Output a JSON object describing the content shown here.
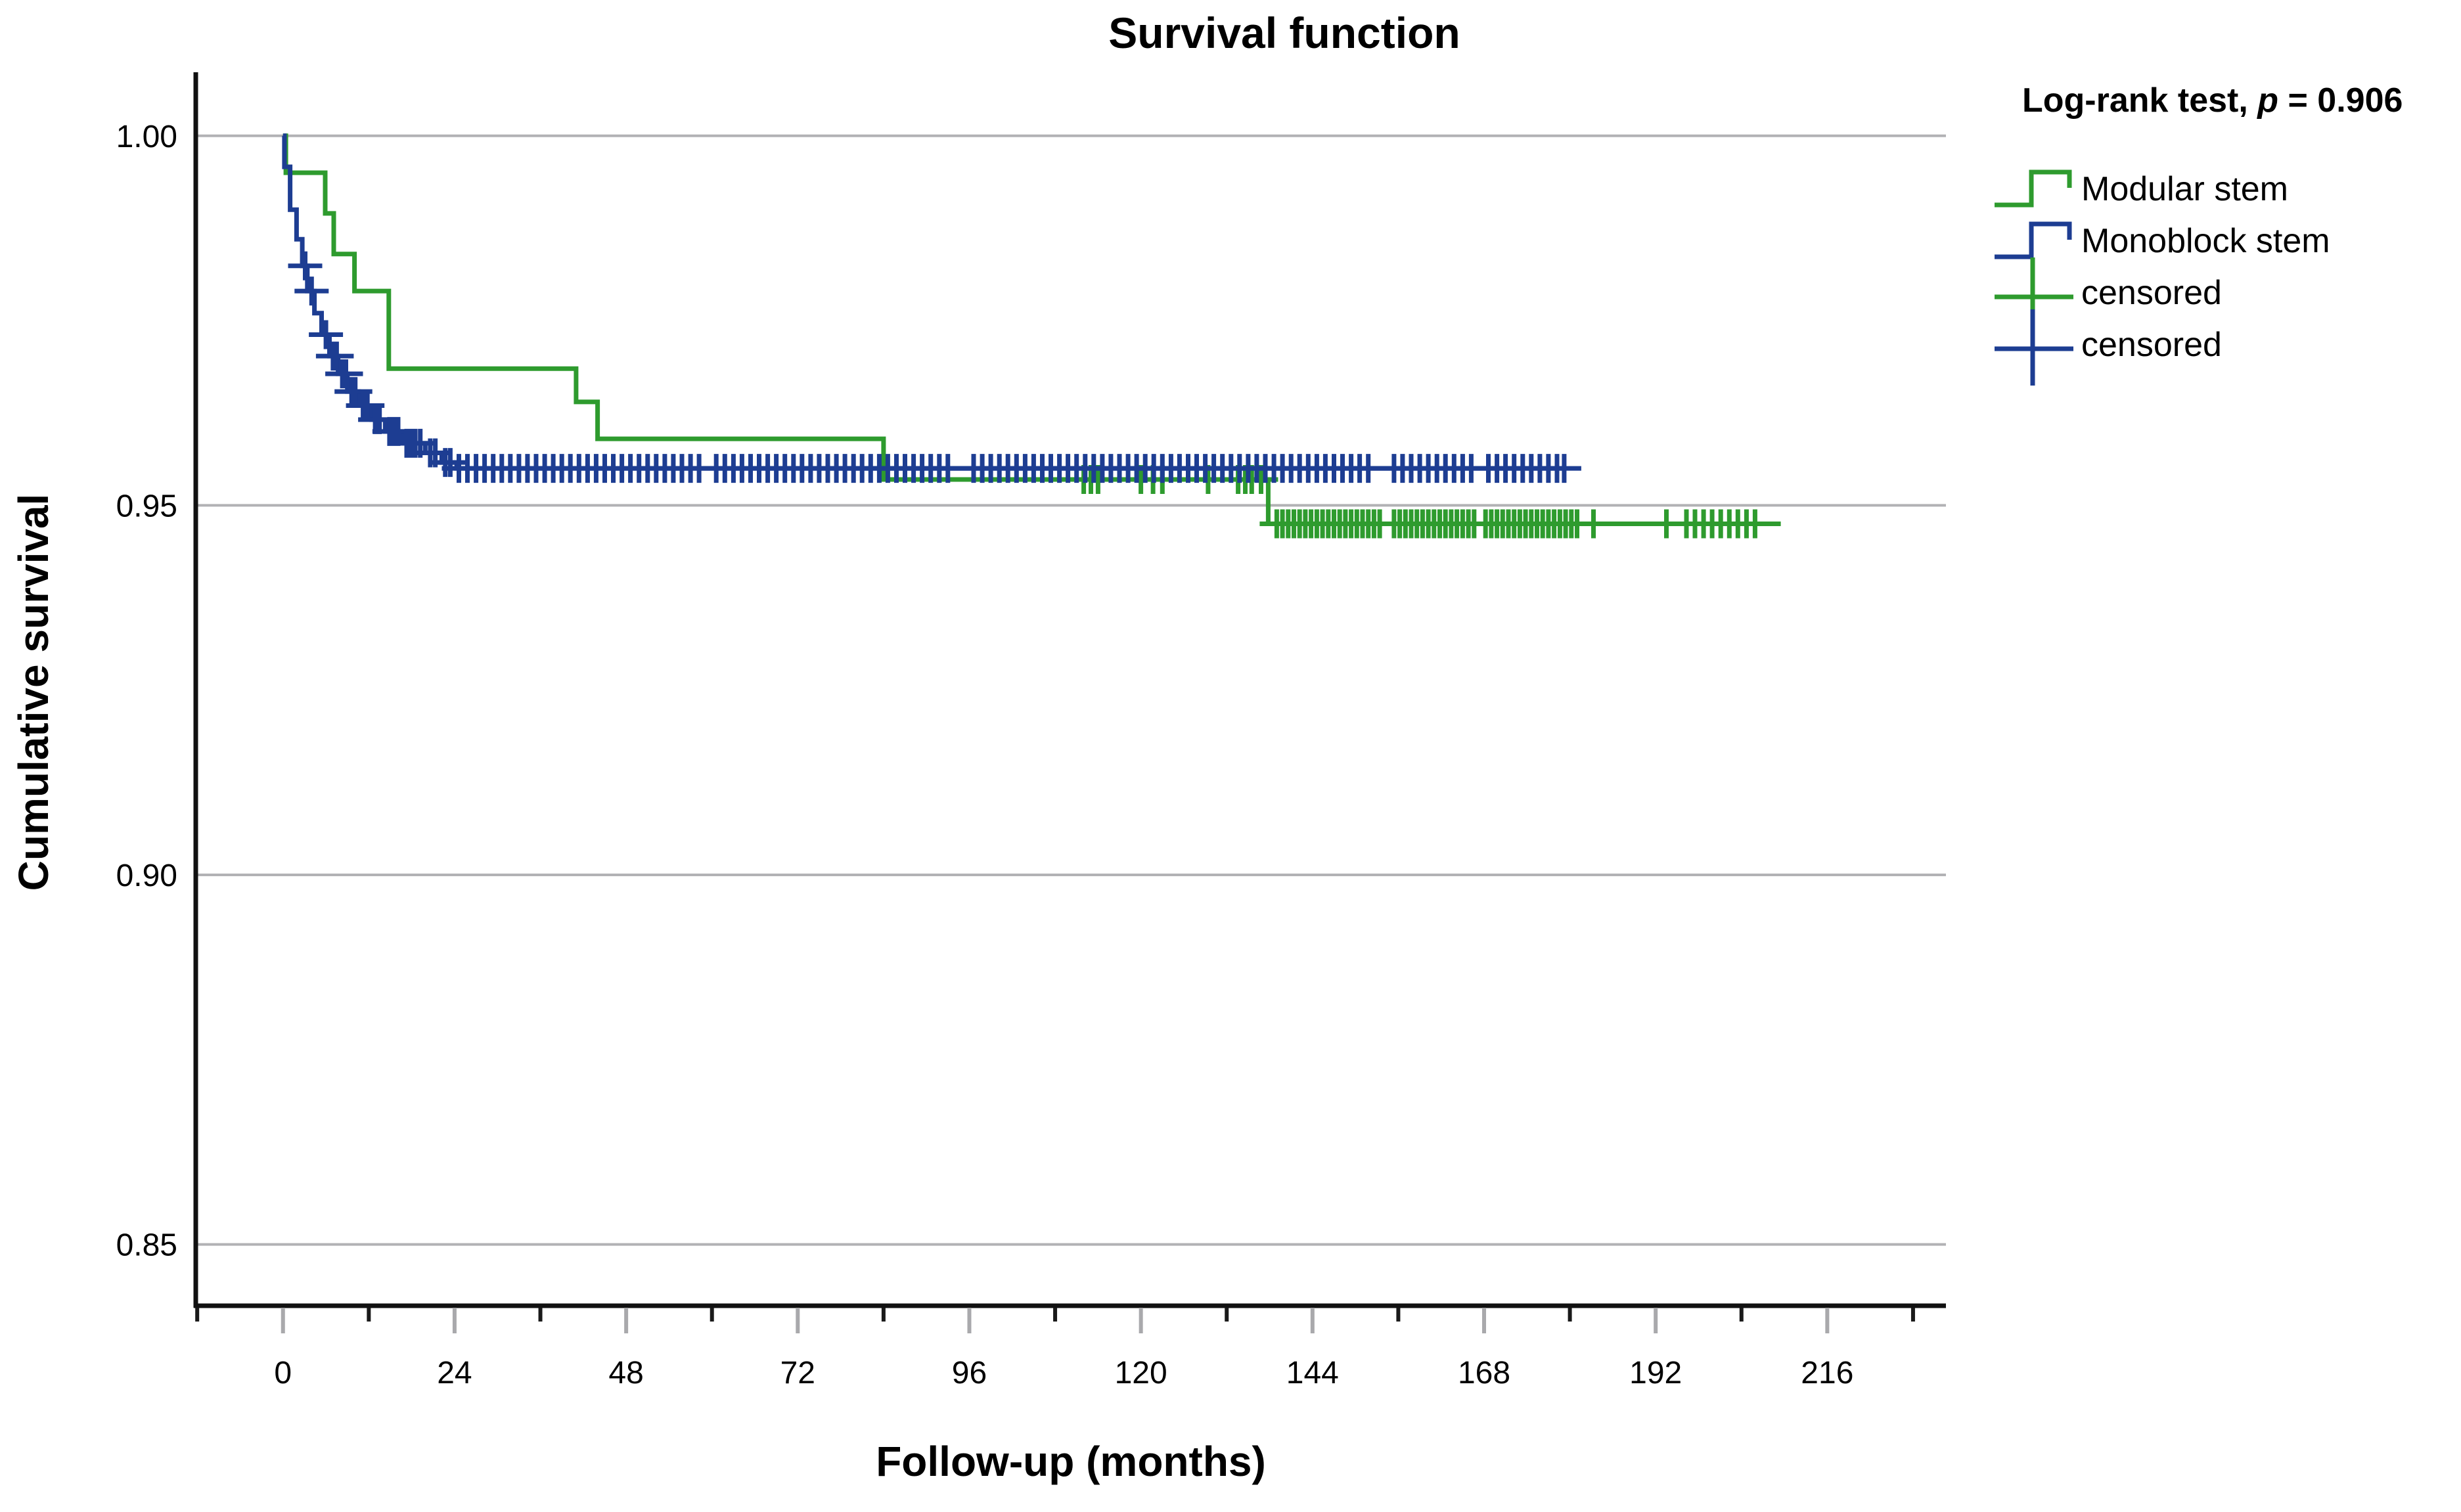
{
  "title": "Survival function",
  "axes": {
    "x": {
      "label": "Follow-up (months)"
    },
    "y": {
      "label": "Cumulative survival"
    }
  },
  "legend": {
    "stats": {
      "prefix": "Log-rank test, ",
      "p_symbol": "p",
      "suffix": " = 0.906"
    },
    "p_value": 0.906,
    "items": [
      {
        "label": "Modular stem",
        "color": "#2e9b2e",
        "symbol": "step"
      },
      {
        "label": "Monoblock stem",
        "color": "#1d3d92",
        "symbol": "step"
      },
      {
        "label": "censored",
        "color": "#2e9b2e",
        "symbol": "plus"
      },
      {
        "label": "censored",
        "color": "#1d3d92",
        "symbol": "plus"
      }
    ]
  },
  "colors": {
    "modular_green": "#2e9b2e",
    "monoblock_blue": "#1d3d92",
    "gridline": "#b2b2b5",
    "axis": "#111111",
    "background": "#ffffff"
  },
  "chart_data": {
    "type": "line",
    "subtype": "kaplan-meier-step",
    "title": "Survival function",
    "xlabel": "Follow-up (months)",
    "ylabel": "Cumulative survival",
    "x_range": [
      -12.2,
      232.6
    ],
    "y_range": [
      0.8417,
      1.0086
    ],
    "x_ticks": [
      0,
      24,
      48,
      72,
      96,
      120,
      144,
      168,
      192,
      216
    ],
    "x_minor_ticks": [
      -12,
      12,
      36,
      60,
      84,
      108,
      132,
      156,
      180,
      204,
      228
    ],
    "y_ticks": [
      1.0,
      0.95,
      0.9,
      0.85
    ],
    "y_tick_labels": [
      "1.00",
      "0.95",
      "0.90",
      "0.85"
    ],
    "grid": "horizontal",
    "legend_position": "top-right",
    "series": [
      {
        "name": "Modular stem",
        "color": "#2e9b2e",
        "steps": [
          [
            0,
            1.0
          ],
          [
            0.4,
            0.995
          ],
          [
            5.9,
            0.9895
          ],
          [
            7.1,
            0.984
          ],
          [
            10,
            0.979
          ],
          [
            14.8,
            0.9685
          ],
          [
            41,
            0.964
          ],
          [
            44,
            0.959
          ],
          [
            84,
            0.9535
          ],
          [
            137.8,
            0.9475
          ]
        ],
        "end_time": 209.5,
        "censored": [
          {
            "s": 0.9535,
            "t": [
              112,
              113,
              114,
              120,
              121.7,
              123,
              129.4,
              133.6,
              134.6,
              135.5,
              136.8
            ]
          },
          {
            "s": 0.9475,
            "t": [
              139,
              139.8,
              140.6,
              141.4,
              142.2,
              143,
              143.8,
              144.6,
              145.4,
              146.2,
              147,
              147.8,
              148.6,
              149.4,
              150.2,
              151,
              151.8,
              152.6,
              153.4,
              155.4,
              156.2,
              157,
              157.8,
              158.6,
              159.4,
              160.2,
              161,
              161.8,
              162.6,
              163.4,
              164.2,
              165,
              165.8,
              166.6,
              168.2,
              169,
              169.8,
              170.6,
              171.4,
              172.2,
              173,
              173.8,
              174.6,
              175.4,
              176.2,
              177,
              177.8,
              178.6,
              179.4,
              180.2,
              181,
              183.3,
              193.5,
              196.3,
              197.5,
              198.7,
              199.9,
              201.1,
              202.3,
              203.5,
              204.7,
              205.9
            ]
          }
        ]
      },
      {
        "name": "Monoblock stem",
        "color": "#1d3d92",
        "steps": [
          [
            0,
            1.0
          ],
          [
            0.2,
            0.9958
          ],
          [
            1,
            0.99
          ],
          [
            1.9,
            0.986
          ],
          [
            2.7,
            0.9824
          ],
          [
            3.4,
            0.979
          ],
          [
            4.4,
            0.976
          ],
          [
            5.4,
            0.9731
          ],
          [
            6.5,
            0.9702
          ],
          [
            7.7,
            0.9678
          ],
          [
            9,
            0.9654
          ],
          [
            10.6,
            0.9635
          ],
          [
            12.4,
            0.9616
          ],
          [
            14.3,
            0.96
          ],
          [
            16.7,
            0.9584
          ],
          [
            19.9,
            0.9571
          ],
          [
            22.2,
            0.9558
          ],
          [
            24.3,
            0.955
          ]
        ],
        "end_time": 179.5,
        "censored": [
          {
            "s": 0.9824,
            "t": [
              3.1
            ]
          },
          {
            "s": 0.979,
            "t": [
              4.0
            ]
          },
          {
            "s": 0.9731,
            "t": [
              6.0
            ]
          },
          {
            "s": 0.9702,
            "t": [
              7.0,
              7.5
            ]
          },
          {
            "s": 0.9678,
            "t": [
              8.3,
              8.8
            ]
          },
          {
            "s": 0.9654,
            "t": [
              9.6,
              10.1
            ]
          },
          {
            "s": 0.9635,
            "t": [
              11.2,
              11.8
            ]
          },
          {
            "s": 0.9616,
            "t": [
              12.9,
              13.5
            ]
          },
          {
            "s": 0.96,
            "t": [
              14.9,
              15.5,
              16.1
            ]
          },
          {
            "s": 0.9584,
            "t": [
              17.3,
              17.9,
              18.5,
              19.2
            ]
          },
          {
            "s": 0.9571,
            "t": [
              20.6,
              21.3
            ]
          },
          {
            "s": 0.9558,
            "t": [
              22.7,
              23.4
            ]
          },
          {
            "s": 0.955,
            "t": [
              24.6,
              25.8,
              27,
              28.2,
              29.4,
              30.6,
              31.8,
              33,
              34.2,
              35.4,
              36.6,
              37.8,
              39,
              40.2,
              41.4,
              42.6,
              43.8,
              45,
              46.2,
              47.4,
              48.6,
              49.8,
              51,
              52.2,
              53.4,
              54.6,
              55.8,
              57,
              58.2,
              60.6,
              61.8,
              63,
              64.2,
              65.4,
              66.6,
              67.8,
              69,
              70.2,
              71.4,
              72.6,
              73.8,
              75,
              76.2,
              77.4,
              78.6,
              79.8,
              81,
              82.2,
              83.4,
              84.6,
              85.8,
              87,
              88.2,
              89.4,
              90.6,
              91.8,
              93,
              96.6,
              97.8,
              99,
              100.2,
              101.4,
              102.6,
              103.8,
              105,
              106.2,
              107.4,
              108.6,
              109.8,
              111,
              112.2,
              113.4,
              114.6,
              115.8,
              117,
              118.2,
              119.4,
              120.6,
              121.8,
              123,
              124.2,
              125.4,
              126.6,
              127.8,
              129,
              130.2,
              131.4,
              132.6,
              133.8,
              135,
              136.2,
              137.4,
              138.6,
              139.8,
              141,
              142.2,
              143.4,
              144.6,
              145.8,
              147,
              148.2,
              149.4,
              150.6,
              151.8,
              155.4,
              156.6,
              157.8,
              159,
              160.2,
              161.4,
              162.6,
              163.8,
              165,
              166.2,
              168.6,
              169.8,
              171,
              172.2,
              173.4,
              174.6,
              175.8,
              177,
              178.2,
              179.2
            ]
          }
        ]
      }
    ]
  }
}
